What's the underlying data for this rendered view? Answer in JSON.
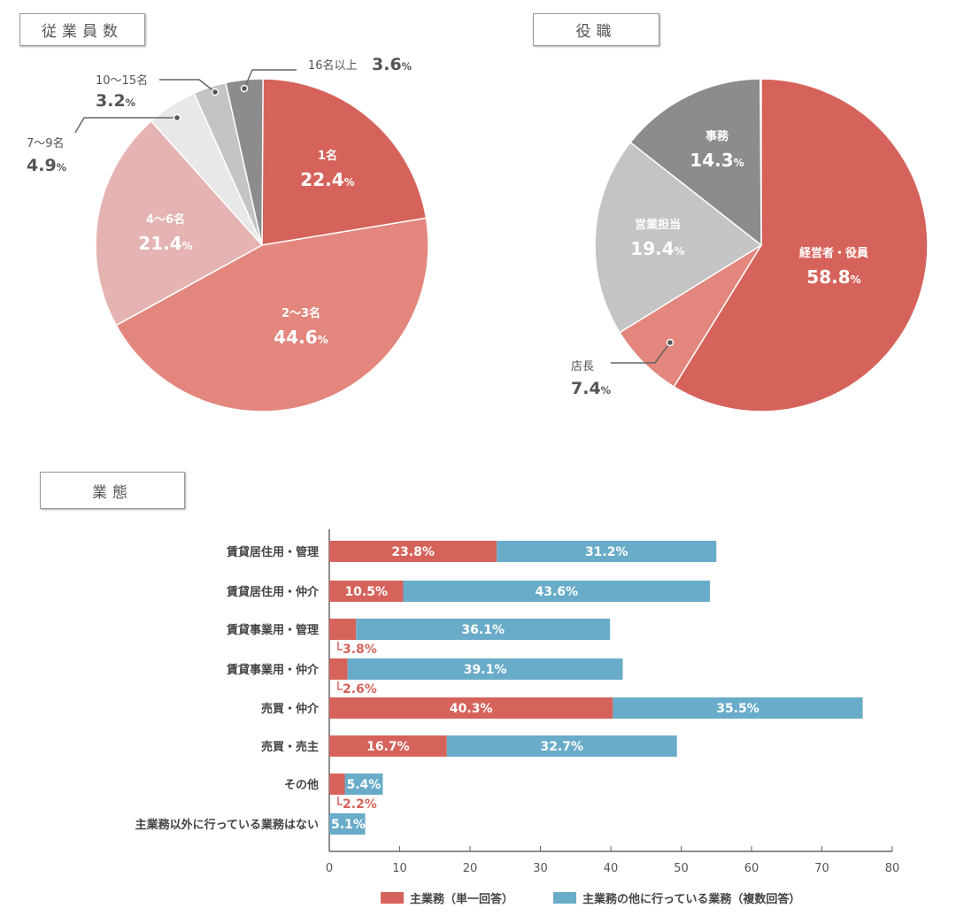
{
  "sections": {
    "employees": "従業員数",
    "role": "役職",
    "business": "業態"
  },
  "chart_data": [
    {
      "type": "pie",
      "title": "従業員数",
      "start": "top",
      "direction": "clockwise",
      "slices": [
        {
          "label": "1名",
          "value": 22.4,
          "color": "#d6635b"
        },
        {
          "label": "2〜3名",
          "value": 44.6,
          "color": "#e2867e"
        },
        {
          "label": "4〜6名",
          "value": 21.4,
          "color": "#e5b3b1"
        },
        {
          "label": "7〜9名",
          "value": 4.9,
          "color": "#e8e8e8"
        },
        {
          "label": "10〜15名",
          "value": 3.2,
          "color": "#c4c4c4"
        },
        {
          "label": "16名以上",
          "value": 3.6,
          "color": "#8c8c8c"
        }
      ]
    },
    {
      "type": "pie",
      "title": "役職",
      "start": "top",
      "direction": "clockwise",
      "slices": [
        {
          "label": "経営者・役員",
          "value": 58.8,
          "color": "#d6635b"
        },
        {
          "label": "店長",
          "value": 7.4,
          "color": "#e2867e"
        },
        {
          "label": "営業担当",
          "value": 19.4,
          "color": "#c4c4c4"
        },
        {
          "label": "事務",
          "value": 14.3,
          "color": "#8c8c8c"
        }
      ]
    },
    {
      "type": "bar",
      "orientation": "horizontal",
      "stacked": true,
      "title": "業態",
      "categories": [
        "賃貸居住用・管理",
        "賃貸居住用・仲介",
        "賃貸事業用・管理",
        "賃貸事業用・仲介",
        "売買・仲介",
        "売買・売主",
        "その他",
        "主業務以外に行っている業務はない"
      ],
      "series": [
        {
          "name": "主業務（単一回答）",
          "color": "#d6635b",
          "values": [
            23.8,
            10.5,
            3.8,
            2.6,
            40.3,
            16.7,
            2.2,
            0
          ]
        },
        {
          "name": "主業務の他に行っている業務（複数回答）",
          "color": "#69acc9",
          "values": [
            31.2,
            43.6,
            36.1,
            39.1,
            35.5,
            32.7,
            5.4,
            5.1
          ]
        }
      ],
      "xlim": [
        0,
        80
      ],
      "xticks": [
        0,
        10,
        20,
        30,
        40,
        50,
        60,
        70,
        80
      ],
      "legend": "bottom"
    }
  ]
}
